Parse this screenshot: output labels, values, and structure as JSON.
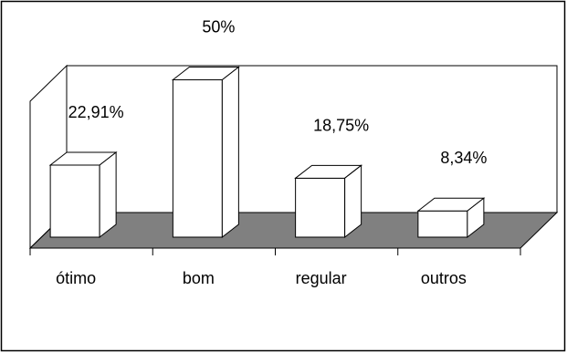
{
  "chart_data": {
    "type": "bar",
    "style": "3d-column",
    "categories": [
      "ótimo",
      "bom",
      "regular",
      "outros"
    ],
    "values": [
      22.91,
      50,
      18.75,
      8.34
    ],
    "data_labels": [
      "22,91%",
      "50%",
      "18,75%",
      "8,34%"
    ],
    "title": "",
    "xlabel": "",
    "ylabel": "",
    "ylim": [
      0,
      60
    ],
    "grid": false,
    "legend": "none",
    "colors": {
      "bar_fill": "#ffffff",
      "bar_stroke": "#000000",
      "floor_fill": "#808080",
      "background": "#ffffff"
    }
  }
}
